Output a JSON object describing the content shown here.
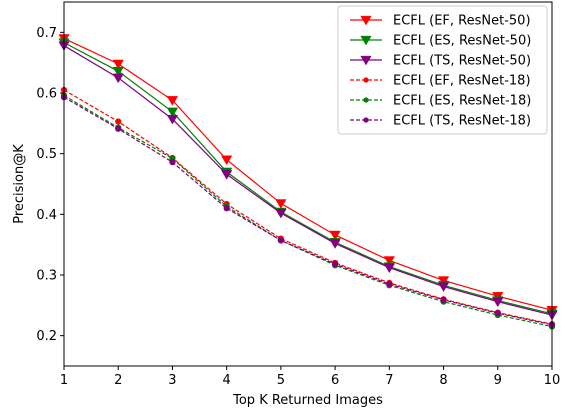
{
  "chart_data": {
    "type": "line",
    "title": "",
    "xlabel": "Top K Returned Images",
    "ylabel": "Precision@K",
    "xlim": [
      1,
      10
    ],
    "ylim": [
      0.15,
      0.75
    ],
    "x": [
      1,
      2,
      3,
      4,
      5,
      6,
      7,
      8,
      9,
      10
    ],
    "xticks": [
      "1",
      "2",
      "3",
      "4",
      "5",
      "6",
      "7",
      "8",
      "9",
      "10"
    ],
    "yticks": [
      0.2,
      0.3,
      0.4,
      0.5,
      0.6,
      0.7
    ],
    "ytick_labels": [
      "0.2",
      "0.3",
      "0.4",
      "0.5",
      "0.6",
      "0.7"
    ],
    "grid": false,
    "legend_position": "top-right",
    "series": [
      {
        "name": "ECFL (EF, ResNet-50)",
        "color": "#ff0000",
        "dashed": false,
        "marker": "triangle-down",
        "values": [
          0.69,
          0.648,
          0.588,
          0.49,
          0.418,
          0.366,
          0.324,
          0.291,
          0.265,
          0.242
        ]
      },
      {
        "name": "ECFL (ES, ResNet-50)",
        "color": "#008000",
        "dashed": false,
        "marker": "triangle-down",
        "values": [
          0.683,
          0.636,
          0.569,
          0.47,
          0.404,
          0.354,
          0.314,
          0.283,
          0.258,
          0.236
        ]
      },
      {
        "name": "ECFL (TS, ResNet-50)",
        "color": "#800080",
        "dashed": false,
        "marker": "triangle-down",
        "values": [
          0.678,
          0.625,
          0.557,
          0.466,
          0.402,
          0.352,
          0.312,
          0.281,
          0.256,
          0.234
        ]
      },
      {
        "name": "ECFL (EF, ResNet-18)",
        "color": "#ff0000",
        "dashed": true,
        "marker": "circle",
        "values": [
          0.605,
          0.553,
          0.493,
          0.417,
          0.36,
          0.32,
          0.287,
          0.26,
          0.238,
          0.219
        ]
      },
      {
        "name": "ECFL (ES, ResNet-18)",
        "color": "#008000",
        "dashed": true,
        "marker": "circle",
        "values": [
          0.596,
          0.543,
          0.492,
          0.413,
          0.357,
          0.316,
          0.283,
          0.256,
          0.234,
          0.215
        ]
      },
      {
        "name": "ECFL (TS, ResNet-18)",
        "color": "#800080",
        "dashed": true,
        "marker": "circle",
        "values": [
          0.593,
          0.541,
          0.486,
          0.41,
          0.357,
          0.318,
          0.285,
          0.259,
          0.237,
          0.218
        ]
      }
    ]
  }
}
